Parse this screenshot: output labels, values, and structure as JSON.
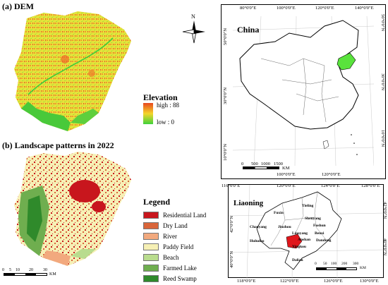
{
  "panel_a": {
    "title": "(a) DEM"
  },
  "panel_b": {
    "title": "(b) Landscape patterns in 2022"
  },
  "elevation_legend": {
    "title": "Elevation",
    "high": "high : 88",
    "low": "low : 0"
  },
  "north": {
    "label": "N"
  },
  "landscape_legend": {
    "title": "Legend",
    "items": [
      {
        "label": "Residential Land",
        "color": "#c8161d"
      },
      {
        "label": "Dry Land",
        "color": "#d9653a"
      },
      {
        "label": "River",
        "color": "#f2a97e"
      },
      {
        "label": "Paddy Field",
        "color": "#f6f0b5"
      },
      {
        "label": "Beach",
        "color": "#b9dc8e"
      },
      {
        "label": "Farmed Lake",
        "color": "#6fae4f"
      },
      {
        "label": "Reed Swamp",
        "color": "#2f8a2b"
      }
    ]
  },
  "scale_main": {
    "ticks": [
      "0",
      "5",
      "10",
      "20",
      "30"
    ],
    "unit": "KM"
  },
  "china_map": {
    "label": "China",
    "top_ticks": [
      "80°0'0\"E",
      "100°0'0\"E",
      "120°0'0\"E",
      "140°0'0\"E"
    ],
    "bottom_ticks": [
      "100°0'0\"E",
      "120°0'0\"E"
    ],
    "left_ticks": [
      "50°0'0\"N",
      "30°0'0\"N",
      "10°0'0\"N"
    ],
    "right_ticks": [
      "50°0'0\"N",
      "30°0'0\"N",
      "10°0'0\"N"
    ],
    "scale": {
      "ticks": [
        "0",
        "500",
        "1000",
        "1500"
      ],
      "unit": "KM"
    }
  },
  "liaoning_map": {
    "label": "Liaoning",
    "top_ticks": [
      "116°0'0\"E",
      "120°0'0\"E",
      "124°0'0\"E",
      "128°0'0\"E"
    ],
    "bottom_ticks": [
      "118°0'0\"E",
      "122°0'0\"E",
      "126°0'0\"E",
      "130°0'0\"E"
    ],
    "left_ticks": [
      "42°0'0\"N",
      "40°0'0\"N"
    ],
    "right_ticks": [
      "42°0'0\"N",
      "40°0'0\"N"
    ],
    "cities": [
      "Tieling",
      "Fuxin",
      "Shenyang",
      "Fushun",
      "Chaoyang",
      "Jinzhou",
      "Liaoyang",
      "Benxi",
      "Anshan",
      "Dandong",
      "Huludao",
      "Yingkou",
      "Dalian"
    ],
    "scale": {
      "ticks": [
        "0",
        "50",
        "100",
        "200",
        "300"
      ],
      "unit": "KM"
    }
  },
  "colors": {
    "dem_high": "#e8471f",
    "dem_mid": "#f4d52a",
    "dem_low": "#3fd23c",
    "highlight_green": "#59e33c",
    "highlight_red": "#e0161b"
  }
}
